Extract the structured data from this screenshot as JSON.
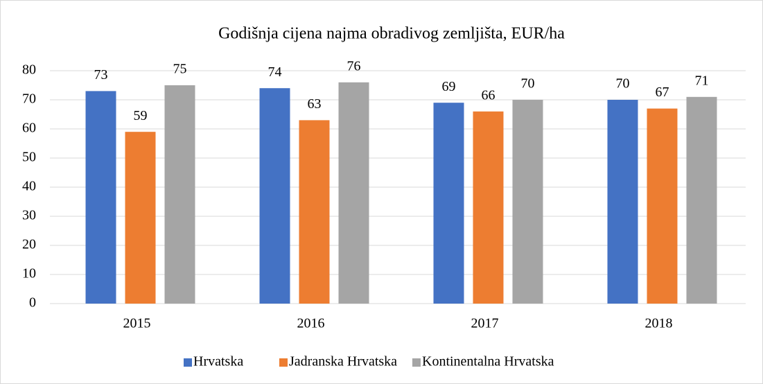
{
  "chart_data": {
    "type": "bar",
    "title": "Godišnja cijena najma obradivog zemljišta, EUR/ha",
    "categories": [
      "2015",
      "2016",
      "2017",
      "2018"
    ],
    "series": [
      {
        "name": "Hrvatska",
        "color": "#4472c4",
        "values": [
          73,
          74,
          69,
          70
        ]
      },
      {
        "name": "Jadranska Hrvatska",
        "color": "#ed7d31",
        "values": [
          59,
          63,
          66,
          67
        ]
      },
      {
        "name": "Kontinentalna Hrvatska",
        "color": "#a5a5a5",
        "values": [
          75,
          76,
          70,
          71
        ]
      }
    ],
    "ylim": [
      0,
      80
    ],
    "yticks": [
      0,
      10,
      20,
      30,
      40,
      50,
      60,
      70,
      80
    ],
    "grid": true,
    "legend": "bottom"
  }
}
